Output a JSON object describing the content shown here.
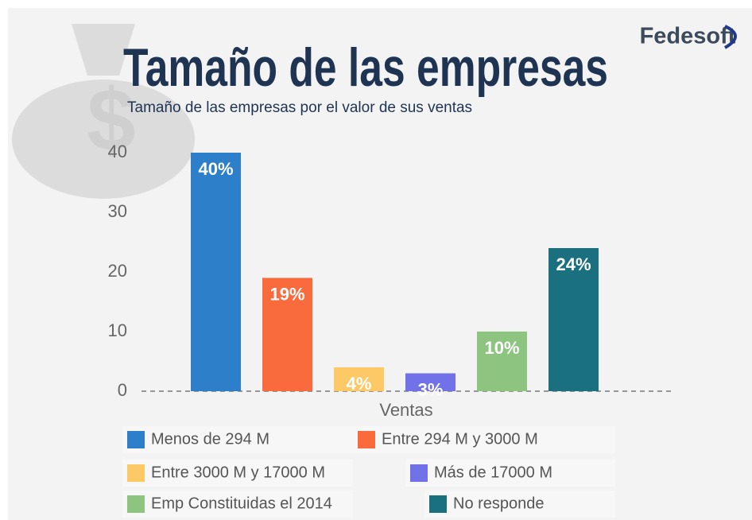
{
  "chart_data": {
    "type": "bar",
    "logo": "Fedesoft",
    "title": "Tamaño de las empresas",
    "subtitle": "Tamaño de las empresas por el valor de sus ventas",
    "categories": [
      "Ventas"
    ],
    "series": [
      {
        "name": "Menos de 294 M",
        "color": "#2d7fc9",
        "values": [
          40
        ],
        "value_labels": [
          "40%"
        ]
      },
      {
        "name": "Entre 294 M y 3000 M",
        "color": "#f96a3c",
        "values": [
          19
        ],
        "value_labels": [
          "19%"
        ]
      },
      {
        "name": "Entre 3000 M y 17000 M",
        "color": "#fdc966",
        "values": [
          4
        ],
        "value_labels": [
          "4%"
        ]
      },
      {
        "name": "Más de 17000 M",
        "color": "#7171e8",
        "values": [
          3
        ],
        "value_labels": [
          "3%"
        ]
      },
      {
        "name": "Emp Constituidas el 2014",
        "color": "#8dc47f",
        "values": [
          10
        ],
        "value_labels": [
          "10%"
        ]
      },
      {
        "name": "No responde",
        "color": "#1a707e",
        "values": [
          24
        ],
        "value_labels": [
          "24%"
        ]
      }
    ],
    "ylim": [
      0,
      40
    ],
    "yticks": [
      0,
      10,
      20,
      30,
      40
    ],
    "grid": false
  }
}
